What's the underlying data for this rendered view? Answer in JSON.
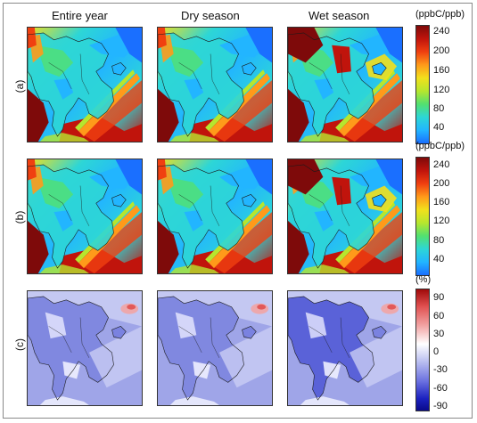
{
  "column_titles": [
    "Entire year",
    "Dry season",
    "Wet season"
  ],
  "row_labels": [
    "(a)",
    "(b)",
    "(c)"
  ],
  "colorbars": [
    {
      "unit": "(ppbC/ppb)",
      "ticks": [
        "240",
        "200",
        "160",
        "120",
        "80",
        "40"
      ]
    },
    {
      "unit": "(ppbC/ppb)",
      "ticks": [
        "240",
        "200",
        "160",
        "120",
        "80",
        "40"
      ]
    },
    {
      "unit": "(%)",
      "ticks": [
        "90",
        "60",
        "30",
        "0",
        "-30",
        "-60",
        "-90"
      ]
    }
  ],
  "colors": {
    "jet": [
      "#1a6fff",
      "#22b5ff",
      "#2dd6d6",
      "#52e070",
      "#b6e62e",
      "#f2e01c",
      "#ff9a1a",
      "#f04010",
      "#c0140c",
      "#7e0a0a"
    ],
    "diverging": [
      "#a00a0a",
      "#e05050",
      "#f2a4a4",
      "#ffffff",
      "#b8bdf0",
      "#6a70e0",
      "#1c22c0",
      "#0a0a8a"
    ]
  },
  "panel_maps": [
    [
      "jet-a-year",
      "jet-a-dry",
      "jet-a-wet"
    ],
    [
      "jet-b-year",
      "jet-b-dry",
      "jet-b-wet"
    ],
    [
      "div-c-year",
      "div-c-dry",
      "div-c-wet"
    ]
  ]
}
